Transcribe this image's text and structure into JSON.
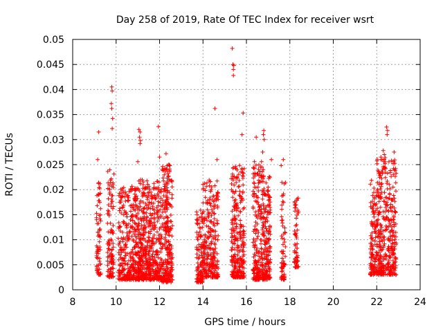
{
  "chart_data": {
    "type": "scatter",
    "title": "Day 258 of 2019, Rate Of TEC Index for receiver wsrt",
    "xlabel": "GPS time / hours",
    "ylabel": "ROTI / TECUs",
    "xlim": [
      8,
      24
    ],
    "ylim": [
      0,
      0.05
    ],
    "xticks": [
      "8",
      "10",
      "12",
      "14",
      "16",
      "18",
      "20",
      "22",
      "24"
    ],
    "yticks": [
      "0",
      "0.005",
      "0.01",
      "0.015",
      "0.02",
      "0.025",
      "0.03",
      "0.035",
      "0.04",
      "0.045",
      "0.05"
    ],
    "grid": true,
    "marker": "plus",
    "color": "#ff0000",
    "segments": [
      {
        "x_start": 9.1,
        "x_end": 9.3,
        "y_min": 0.003,
        "y_max": 0.0215,
        "n": 70
      },
      {
        "x_start": 9.6,
        "x_end": 9.9,
        "y_min": 0.0025,
        "y_max": 0.024,
        "n": 110
      },
      {
        "x_start": 10.1,
        "x_end": 11.0,
        "y_min": 0.002,
        "y_max": 0.021,
        "n": 340
      },
      {
        "x_start": 11.0,
        "x_end": 11.4,
        "y_min": 0.002,
        "y_max": 0.022,
        "n": 220
      },
      {
        "x_start": 11.4,
        "x_end": 12.1,
        "y_min": 0.002,
        "y_max": 0.022,
        "n": 300
      },
      {
        "x_start": 12.1,
        "x_end": 12.6,
        "y_min": 0.0015,
        "y_max": 0.025,
        "n": 260
      },
      {
        "x_start": 13.7,
        "x_end": 14.0,
        "y_min": 0.0015,
        "y_max": 0.016,
        "n": 120
      },
      {
        "x_start": 14.0,
        "x_end": 14.7,
        "y_min": 0.0025,
        "y_max": 0.022,
        "n": 260
      },
      {
        "x_start": 15.3,
        "x_end": 15.9,
        "y_min": 0.0025,
        "y_max": 0.025,
        "n": 280
      },
      {
        "x_start": 16.3,
        "x_end": 16.8,
        "y_min": 0.002,
        "y_max": 0.026,
        "n": 230
      },
      {
        "x_start": 16.8,
        "x_end": 17.1,
        "y_min": 0.002,
        "y_max": 0.023,
        "n": 150
      },
      {
        "x_start": 17.6,
        "x_end": 17.8,
        "y_min": 0.002,
        "y_max": 0.022,
        "n": 70
      },
      {
        "x_start": 18.2,
        "x_end": 18.4,
        "y_min": 0.0045,
        "y_max": 0.0195,
        "n": 60
      },
      {
        "x_start": 21.7,
        "x_end": 22.0,
        "y_min": 0.003,
        "y_max": 0.022,
        "n": 120
      },
      {
        "x_start": 22.0,
        "x_end": 22.4,
        "y_min": 0.003,
        "y_max": 0.027,
        "n": 180
      },
      {
        "x_start": 22.4,
        "x_end": 22.9,
        "y_min": 0.003,
        "y_max": 0.026,
        "n": 200
      }
    ],
    "outliers": [
      {
        "x": 9.2,
        "y": 0.0315
      },
      {
        "x": 9.15,
        "y": 0.026
      },
      {
        "x": 9.8,
        "y": 0.0405
      },
      {
        "x": 9.82,
        "y": 0.0397
      },
      {
        "x": 9.78,
        "y": 0.0372
      },
      {
        "x": 9.8,
        "y": 0.0362
      },
      {
        "x": 9.84,
        "y": 0.0342
      },
      {
        "x": 9.82,
        "y": 0.0322
      },
      {
        "x": 11.05,
        "y": 0.032
      },
      {
        "x": 11.1,
        "y": 0.0315
      },
      {
        "x": 11.08,
        "y": 0.0305
      },
      {
        "x": 11.12,
        "y": 0.0298
      },
      {
        "x": 11.1,
        "y": 0.0292
      },
      {
        "x": 11.0,
        "y": 0.0256
      },
      {
        "x": 11.95,
        "y": 0.0326
      },
      {
        "x": 12.0,
        "y": 0.0265
      },
      {
        "x": 12.3,
        "y": 0.0272
      },
      {
        "x": 14.55,
        "y": 0.0362
      },
      {
        "x": 14.65,
        "y": 0.026
      },
      {
        "x": 15.35,
        "y": 0.0482
      },
      {
        "x": 15.38,
        "y": 0.045
      },
      {
        "x": 15.42,
        "y": 0.0448
      },
      {
        "x": 15.4,
        "y": 0.044
      },
      {
        "x": 15.4,
        "y": 0.0428
      },
      {
        "x": 15.85,
        "y": 0.0353
      },
      {
        "x": 15.8,
        "y": 0.031
      },
      {
        "x": 16.45,
        "y": 0.0305
      },
      {
        "x": 16.8,
        "y": 0.0318
      },
      {
        "x": 16.78,
        "y": 0.031
      },
      {
        "x": 16.82,
        "y": 0.03
      },
      {
        "x": 16.75,
        "y": 0.0275
      },
      {
        "x": 17.15,
        "y": 0.026
      },
      {
        "x": 17.6,
        "y": 0.0248
      },
      {
        "x": 17.7,
        "y": 0.026
      },
      {
        "x": 22.45,
        "y": 0.0325
      },
      {
        "x": 22.5,
        "y": 0.0318
      },
      {
        "x": 22.48,
        "y": 0.031
      },
      {
        "x": 22.3,
        "y": 0.0278
      },
      {
        "x": 22.35,
        "y": 0.027
      },
      {
        "x": 22.8,
        "y": 0.0275
      }
    ]
  }
}
